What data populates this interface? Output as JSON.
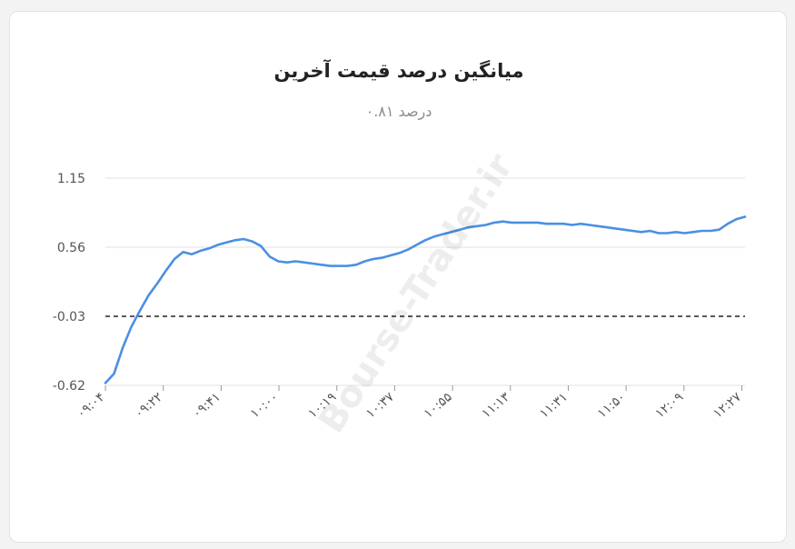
{
  "chart_data": {
    "type": "line",
    "title": "میانگین درصد قیمت آخرین",
    "subtitle": "درصد ۰.۸۱",
    "y_ticks": [
      "1.15",
      "0.56",
      "-0.03",
      "-0.62"
    ],
    "y_tick_values": [
      1.15,
      0.56,
      -0.03,
      -0.62
    ],
    "x_ticks": [
      "۰۹:۰۴",
      "۰۹:۲۲",
      "۰۹:۴۱",
      "۱۰:۰۰",
      "۱۰:۱۹",
      "۱۰:۳۷",
      "۱۰:۵۵",
      "۱۱:۱۳",
      "۱۱:۳۱",
      "۱۱:۵۰",
      "۱۲:۰۹",
      "۱۲:۲۷"
    ],
    "ylim": [
      -0.62,
      1.15
    ],
    "reference_line": -0.03,
    "series": [
      {
        "color": "#4a90e2",
        "points": [
          [
            0,
            -0.6
          ],
          [
            1,
            -0.52
          ],
          [
            2,
            -0.3
          ],
          [
            3,
            -0.12
          ],
          [
            4,
            0.02
          ],
          [
            5,
            0.15
          ],
          [
            6,
            0.25
          ],
          [
            7,
            0.36
          ],
          [
            8,
            0.46
          ],
          [
            9,
            0.52
          ],
          [
            10,
            0.5
          ],
          [
            11,
            0.53
          ],
          [
            12,
            0.55
          ],
          [
            13,
            0.58
          ],
          [
            14,
            0.6
          ],
          [
            15,
            0.62
          ],
          [
            16,
            0.63
          ],
          [
            17,
            0.61
          ],
          [
            18,
            0.57
          ],
          [
            19,
            0.48
          ],
          [
            20,
            0.44
          ],
          [
            21,
            0.43
          ],
          [
            22,
            0.44
          ],
          [
            23,
            0.43
          ],
          [
            24,
            0.42
          ],
          [
            25,
            0.41
          ],
          [
            26,
            0.4
          ],
          [
            27,
            0.4
          ],
          [
            28,
            0.4
          ],
          [
            29,
            0.41
          ],
          [
            30,
            0.44
          ],
          [
            31,
            0.46
          ],
          [
            32,
            0.47
          ],
          [
            33,
            0.49
          ],
          [
            34,
            0.51
          ],
          [
            35,
            0.54
          ],
          [
            36,
            0.58
          ],
          [
            37,
            0.62
          ],
          [
            38,
            0.65
          ],
          [
            39,
            0.67
          ],
          [
            40,
            0.69
          ],
          [
            41,
            0.71
          ],
          [
            42,
            0.73
          ],
          [
            43,
            0.74
          ],
          [
            44,
            0.75
          ],
          [
            45,
            0.77
          ],
          [
            46,
            0.78
          ],
          [
            47,
            0.77
          ],
          [
            48,
            0.77
          ],
          [
            49,
            0.77
          ],
          [
            50,
            0.77
          ],
          [
            51,
            0.76
          ],
          [
            52,
            0.76
          ],
          [
            53,
            0.76
          ],
          [
            54,
            0.75
          ],
          [
            55,
            0.76
          ],
          [
            56,
            0.75
          ],
          [
            57,
            0.74
          ],
          [
            58,
            0.73
          ],
          [
            59,
            0.72
          ],
          [
            60,
            0.71
          ],
          [
            61,
            0.7
          ],
          [
            62,
            0.69
          ],
          [
            63,
            0.7
          ],
          [
            64,
            0.68
          ],
          [
            65,
            0.68
          ],
          [
            66,
            0.69
          ],
          [
            67,
            0.68
          ],
          [
            68,
            0.69
          ],
          [
            69,
            0.7
          ],
          [
            70,
            0.7
          ],
          [
            71,
            0.71
          ],
          [
            72,
            0.76
          ],
          [
            73,
            0.8
          ],
          [
            74,
            0.82
          ]
        ]
      }
    ],
    "x_max": 74,
    "grid": true
  },
  "watermark_text": "Bourse-Trader.ir"
}
